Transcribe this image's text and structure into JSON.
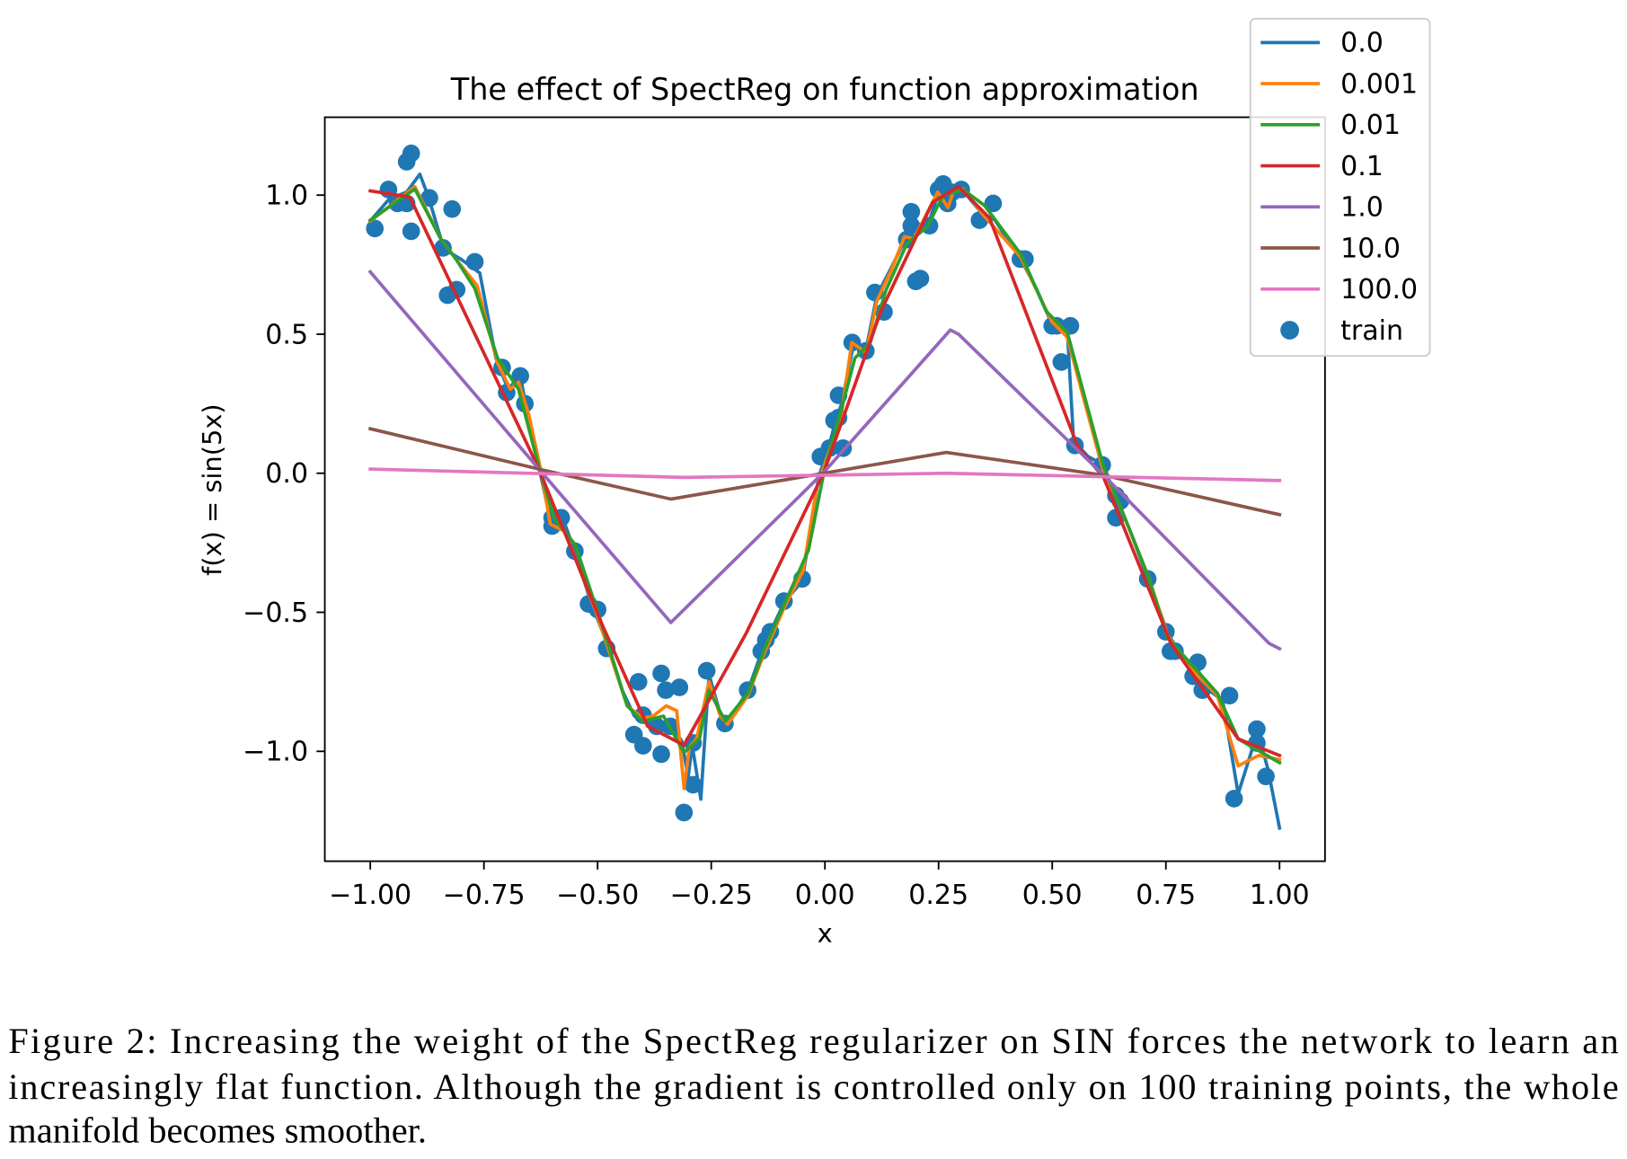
{
  "chart_data": {
    "type": "line",
    "title": "The effect of SpectReg on function approximation",
    "xlabel": "x",
    "ylabel": "f(x) = sin(5x)",
    "xlim": [
      -1.1,
      1.1
    ],
    "ylim": [
      -1.395,
      1.28
    ],
    "xticks": [
      -1.0,
      -0.75,
      -0.5,
      -0.25,
      0.0,
      0.25,
      0.5,
      0.75,
      1.0
    ],
    "xtick_labels": [
      "−1.00",
      "−0.75",
      "−0.50",
      "−0.25",
      "0.00",
      "0.25",
      "0.50",
      "0.75",
      "1.00"
    ],
    "yticks": [
      -1.0,
      -0.5,
      0.0,
      0.5,
      1.0
    ],
    "ytick_labels": [
      "−1.0",
      "−0.5",
      "0.0",
      "0.5",
      "1.0"
    ],
    "grid": false,
    "legend": "upper-right",
    "series": [
      {
        "name": "0.0",
        "color": "#1f77b4",
        "points": [
          [
            -1.0,
            0.907
          ],
          [
            -0.959,
            0.985
          ],
          [
            -0.92,
            1.011
          ],
          [
            -0.891,
            1.075
          ],
          [
            -0.872,
            0.993
          ],
          [
            -0.838,
            0.806
          ],
          [
            -0.8,
            0.769
          ],
          [
            -0.759,
            0.72
          ],
          [
            -0.724,
            0.414
          ],
          [
            -0.697,
            0.302
          ],
          [
            -0.67,
            0.351
          ],
          [
            -0.656,
            0.228
          ],
          [
            -0.629,
            0.022
          ],
          [
            -0.604,
            -0.164
          ],
          [
            -0.572,
            -0.183
          ],
          [
            -0.547,
            -0.295
          ],
          [
            -0.515,
            -0.463
          ],
          [
            -0.474,
            -0.631
          ],
          [
            -0.446,
            -0.78
          ],
          [
            -0.419,
            -0.873
          ],
          [
            -0.378,
            -0.91
          ],
          [
            -0.339,
            -0.903
          ],
          [
            -0.314,
            -0.966
          ],
          [
            -0.301,
            -1.097
          ],
          [
            -0.292,
            -0.978
          ],
          [
            -0.273,
            -1.172
          ],
          [
            -0.255,
            -0.724
          ],
          [
            -0.23,
            -0.866
          ],
          [
            -0.214,
            -0.899
          ],
          [
            -0.169,
            -0.78
          ],
          [
            -0.134,
            -0.619
          ],
          [
            -0.089,
            -0.463
          ],
          [
            -0.05,
            -0.388
          ],
          [
            -0.014,
            -0.015
          ],
          [
            0.009,
            0.097
          ],
          [
            0.025,
            0.198
          ],
          [
            0.036,
            0.246
          ],
          [
            0.064,
            0.47
          ],
          [
            0.089,
            0.433
          ],
          [
            0.114,
            0.638
          ],
          [
            0.146,
            0.739
          ],
          [
            0.175,
            0.836
          ],
          [
            0.196,
            0.899
          ],
          [
            0.226,
            0.888
          ],
          [
            0.248,
            1.0
          ],
          [
            0.271,
            1.03
          ],
          [
            0.301,
            1.022
          ],
          [
            0.344,
            0.937
          ],
          [
            0.374,
            0.91
          ],
          [
            0.431,
            0.769
          ],
          [
            0.465,
            0.664
          ],
          [
            0.499,
            0.537
          ],
          [
            0.533,
            0.515
          ],
          [
            0.547,
            0.116
          ],
          [
            0.579,
            0.06
          ],
          [
            0.613,
            0.03
          ],
          [
            0.64,
            -0.09
          ],
          [
            0.67,
            -0.201
          ],
          [
            0.711,
            -0.381
          ],
          [
            0.754,
            -0.575
          ],
          [
            0.784,
            -0.657
          ],
          [
            0.829,
            -0.761
          ],
          [
            0.875,
            -0.817
          ],
          [
            0.909,
            -1.153
          ],
          [
            0.952,
            -0.929
          ],
          [
            0.975,
            -1.067
          ],
          [
            1.0,
            -1.276
          ]
        ]
      },
      {
        "name": "0.001",
        "color": "#ff7f0e",
        "points": [
          [
            -1.0,
            0.907
          ],
          [
            -0.902,
            1.03
          ],
          [
            -0.845,
            0.843
          ],
          [
            -0.811,
            0.769
          ],
          [
            -0.765,
            0.675
          ],
          [
            -0.72,
            0.396
          ],
          [
            -0.692,
            0.302
          ],
          [
            -0.674,
            0.328
          ],
          [
            -0.651,
            0.209
          ],
          [
            -0.624,
            0.004
          ],
          [
            -0.604,
            -0.183
          ],
          [
            -0.572,
            -0.209
          ],
          [
            -0.503,
            -0.5
          ],
          [
            -0.435,
            -0.836
          ],
          [
            -0.401,
            -0.881
          ],
          [
            -0.378,
            -0.873
          ],
          [
            -0.349,
            -0.836
          ],
          [
            -0.326,
            -0.854
          ],
          [
            -0.31,
            -1.134
          ],
          [
            -0.298,
            -0.985
          ],
          [
            -0.282,
            -0.955
          ],
          [
            -0.255,
            -0.75
          ],
          [
            -0.23,
            -0.873
          ],
          [
            -0.214,
            -0.903
          ],
          [
            -0.169,
            -0.799
          ],
          [
            -0.134,
            -0.649
          ],
          [
            -0.089,
            -0.481
          ],
          [
            -0.048,
            -0.351
          ],
          [
            -0.018,
            -0.052
          ],
          [
            0.009,
            0.078
          ],
          [
            0.036,
            0.209
          ],
          [
            0.059,
            0.47
          ],
          [
            0.091,
            0.433
          ],
          [
            0.114,
            0.619
          ],
          [
            0.146,
            0.731
          ],
          [
            0.175,
            0.851
          ],
          [
            0.196,
            0.843
          ],
          [
            0.248,
            1.011
          ],
          [
            0.271,
            0.955
          ],
          [
            0.282,
            1.011
          ],
          [
            0.305,
            1.022
          ],
          [
            0.344,
            0.937
          ],
          [
            0.431,
            0.776
          ],
          [
            0.499,
            0.545
          ],
          [
            0.533,
            0.489
          ],
          [
            0.579,
            0.209
          ],
          [
            0.613,
            0.004
          ],
          [
            0.642,
            -0.09
          ],
          [
            0.711,
            -0.369
          ],
          [
            0.754,
            -0.582
          ],
          [
            0.795,
            -0.687
          ],
          [
            0.863,
            -0.799
          ],
          [
            0.909,
            -1.052
          ],
          [
            0.954,
            -1.015
          ],
          [
            1.0,
            -1.03
          ]
        ]
      },
      {
        "name": "0.01",
        "color": "#2ca02c",
        "points": [
          [
            -1.0,
            0.91
          ],
          [
            -0.902,
            1.022
          ],
          [
            -0.845,
            0.843
          ],
          [
            -0.811,
            0.769
          ],
          [
            -0.77,
            0.664
          ],
          [
            -0.72,
            0.414
          ],
          [
            -0.674,
            0.302
          ],
          [
            -0.629,
            0.022
          ],
          [
            -0.595,
            -0.164
          ],
          [
            -0.549,
            -0.257
          ],
          [
            -0.492,
            -0.537
          ],
          [
            -0.435,
            -0.836
          ],
          [
            -0.401,
            -0.892
          ],
          [
            -0.355,
            -0.873
          ],
          [
            -0.31,
            -1.004
          ],
          [
            -0.276,
            -0.955
          ],
          [
            -0.255,
            -0.78
          ],
          [
            -0.219,
            -0.892
          ],
          [
            -0.169,
            -0.791
          ],
          [
            -0.128,
            -0.612
          ],
          [
            -0.082,
            -0.444
          ],
          [
            -0.036,
            -0.276
          ],
          [
            -0.002,
            0.004
          ],
          [
            0.036,
            0.228
          ],
          [
            0.066,
            0.414
          ],
          [
            0.1,
            0.47
          ],
          [
            0.134,
            0.657
          ],
          [
            0.18,
            0.825
          ],
          [
            0.226,
            0.888
          ],
          [
            0.26,
            1.0
          ],
          [
            0.305,
            1.019
          ],
          [
            0.351,
            0.963
          ],
          [
            0.431,
            0.787
          ],
          [
            0.487,
            0.582
          ],
          [
            0.533,
            0.507
          ],
          [
            0.567,
            0.302
          ],
          [
            0.613,
            0.022
          ],
          [
            0.647,
            -0.108
          ],
          [
            0.711,
            -0.369
          ],
          [
            0.754,
            -0.593
          ],
          [
            0.806,
            -0.687
          ],
          [
            0.863,
            -0.791
          ],
          [
            0.909,
            -0.955
          ],
          [
            1.0,
            -1.041
          ]
        ]
      },
      {
        "name": "0.1",
        "color": "#d62728",
        "points": [
          [
            -1.0,
            1.015
          ],
          [
            -0.913,
            0.993
          ],
          [
            -0.629,
            0.015
          ],
          [
            -0.492,
            -0.537
          ],
          [
            -0.39,
            -0.91
          ],
          [
            -0.31,
            -0.978
          ],
          [
            -0.173,
            -0.575
          ],
          [
            -0.002,
            0.004
          ],
          [
            0.123,
            0.582
          ],
          [
            0.237,
            0.974
          ],
          [
            0.294,
            1.03
          ],
          [
            0.362,
            0.918
          ],
          [
            0.556,
            0.097
          ],
          [
            0.613,
            -0.015
          ],
          [
            0.761,
            -0.612
          ],
          [
            0.909,
            -0.955
          ],
          [
            1.0,
            -1.015
          ]
        ]
      },
      {
        "name": "1.0",
        "color": "#9467bd",
        "points": [
          [
            -1.0,
            0.724
          ],
          [
            -0.629,
            0.015
          ],
          [
            -0.339,
            -0.537
          ],
          [
            -0.002,
            0.004
          ],
          [
            0.276,
            0.515
          ],
          [
            0.294,
            0.5
          ],
          [
            0.613,
            -0.007
          ],
          [
            0.977,
            -0.612
          ],
          [
            1.0,
            -0.631
          ]
        ]
      },
      {
        "name": "10.0",
        "color": "#8c564b",
        "points": [
          [
            -1.0,
            0.16
          ],
          [
            -0.629,
            0.015
          ],
          [
            -0.339,
            -0.093
          ],
          [
            -0.002,
            0.0
          ],
          [
            0.267,
            0.075
          ],
          [
            0.613,
            -0.007
          ],
          [
            1.0,
            -0.149
          ]
        ]
      },
      {
        "name": "100.0",
        "color": "#e377c2",
        "points": [
          [
            -1.0,
            0.015
          ],
          [
            -0.31,
            -0.015
          ],
          [
            0.267,
            0.0
          ],
          [
            1.0,
            -0.026
          ]
        ]
      }
    ],
    "scatter": {
      "name": "train",
      "color": "#1f77b4",
      "points": [
        [
          -0.99,
          0.88
        ],
        [
          -0.96,
          1.02
        ],
        [
          -0.94,
          0.97
        ],
        [
          -0.92,
          0.97
        ],
        [
          -0.92,
          1.12
        ],
        [
          -0.91,
          1.15
        ],
        [
          -0.91,
          0.87
        ],
        [
          -0.87,
          0.99
        ],
        [
          -0.82,
          0.95
        ],
        [
          -0.84,
          0.81
        ],
        [
          -0.83,
          0.64
        ],
        [
          -0.81,
          0.66
        ],
        [
          -0.77,
          0.76
        ],
        [
          -0.71,
          0.38
        ],
        [
          -0.7,
          0.29
        ],
        [
          -0.67,
          0.35
        ],
        [
          -0.66,
          0.25
        ],
        [
          -0.6,
          -0.16
        ],
        [
          -0.6,
          -0.19
        ],
        [
          -0.58,
          -0.16
        ],
        [
          -0.55,
          -0.28
        ],
        [
          -0.52,
          -0.47
        ],
        [
          -0.5,
          -0.49
        ],
        [
          -0.48,
          -0.63
        ],
        [
          -0.42,
          -0.94
        ],
        [
          -0.41,
          -0.75
        ],
        [
          -0.4,
          -0.87
        ],
        [
          -0.4,
          -0.98
        ],
        [
          -0.37,
          -0.91
        ],
        [
          -0.36,
          -1.01
        ],
        [
          -0.36,
          -0.72
        ],
        [
          -0.35,
          -0.78
        ],
        [
          -0.34,
          -0.91
        ],
        [
          -0.32,
          -0.77
        ],
        [
          -0.31,
          -1.22
        ],
        [
          -0.29,
          -1.12
        ],
        [
          -0.29,
          -0.97
        ],
        [
          -0.26,
          -0.71
        ],
        [
          -0.22,
          -0.9
        ],
        [
          -0.17,
          -0.78
        ],
        [
          -0.14,
          -0.64
        ],
        [
          -0.13,
          -0.6
        ],
        [
          -0.12,
          -0.57
        ],
        [
          -0.09,
          -0.46
        ],
        [
          -0.05,
          -0.38
        ],
        [
          -0.01,
          0.06
        ],
        [
          0.01,
          0.09
        ],
        [
          0.02,
          0.19
        ],
        [
          0.03,
          0.2
        ],
        [
          0.03,
          0.28
        ],
        [
          0.04,
          0.09
        ],
        [
          0.06,
          0.47
        ],
        [
          0.09,
          0.44
        ],
        [
          0.11,
          0.65
        ],
        [
          0.13,
          0.58
        ],
        [
          0.18,
          0.84
        ],
        [
          0.19,
          0.89
        ],
        [
          0.19,
          0.94
        ],
        [
          0.2,
          0.69
        ],
        [
          0.21,
          0.7
        ],
        [
          0.23,
          0.89
        ],
        [
          0.25,
          1.02
        ],
        [
          0.26,
          1.04
        ],
        [
          0.27,
          0.97
        ],
        [
          0.28,
          1.01
        ],
        [
          0.3,
          1.02
        ],
        [
          0.34,
          0.91
        ],
        [
          0.37,
          0.97
        ],
        [
          0.43,
          0.77
        ],
        [
          0.44,
          0.77
        ],
        [
          0.5,
          0.53
        ],
        [
          0.51,
          0.53
        ],
        [
          0.52,
          0.4
        ],
        [
          0.54,
          0.53
        ],
        [
          0.55,
          0.1
        ],
        [
          0.61,
          0.03
        ],
        [
          0.64,
          -0.16
        ],
        [
          0.64,
          -0.08
        ],
        [
          0.65,
          -0.1
        ],
        [
          0.71,
          -0.38
        ],
        [
          0.75,
          -0.57
        ],
        [
          0.76,
          -0.64
        ],
        [
          0.77,
          -0.64
        ],
        [
          0.81,
          -0.73
        ],
        [
          0.82,
          -0.68
        ],
        [
          0.83,
          -0.78
        ],
        [
          0.89,
          -0.8
        ],
        [
          0.9,
          -1.17
        ],
        [
          0.95,
          -0.92
        ],
        [
          0.95,
          -0.97
        ],
        [
          0.97,
          -1.09
        ]
      ]
    }
  },
  "caption": {
    "lines": [
      "Figure 2:  Increasing the weight of the SpectReg regularizer on SIN forces the network to learn an",
      "increasingly flat function. Although the gradient is controlled only on 100 training points, the whole",
      "manifold becomes smoother."
    ]
  }
}
